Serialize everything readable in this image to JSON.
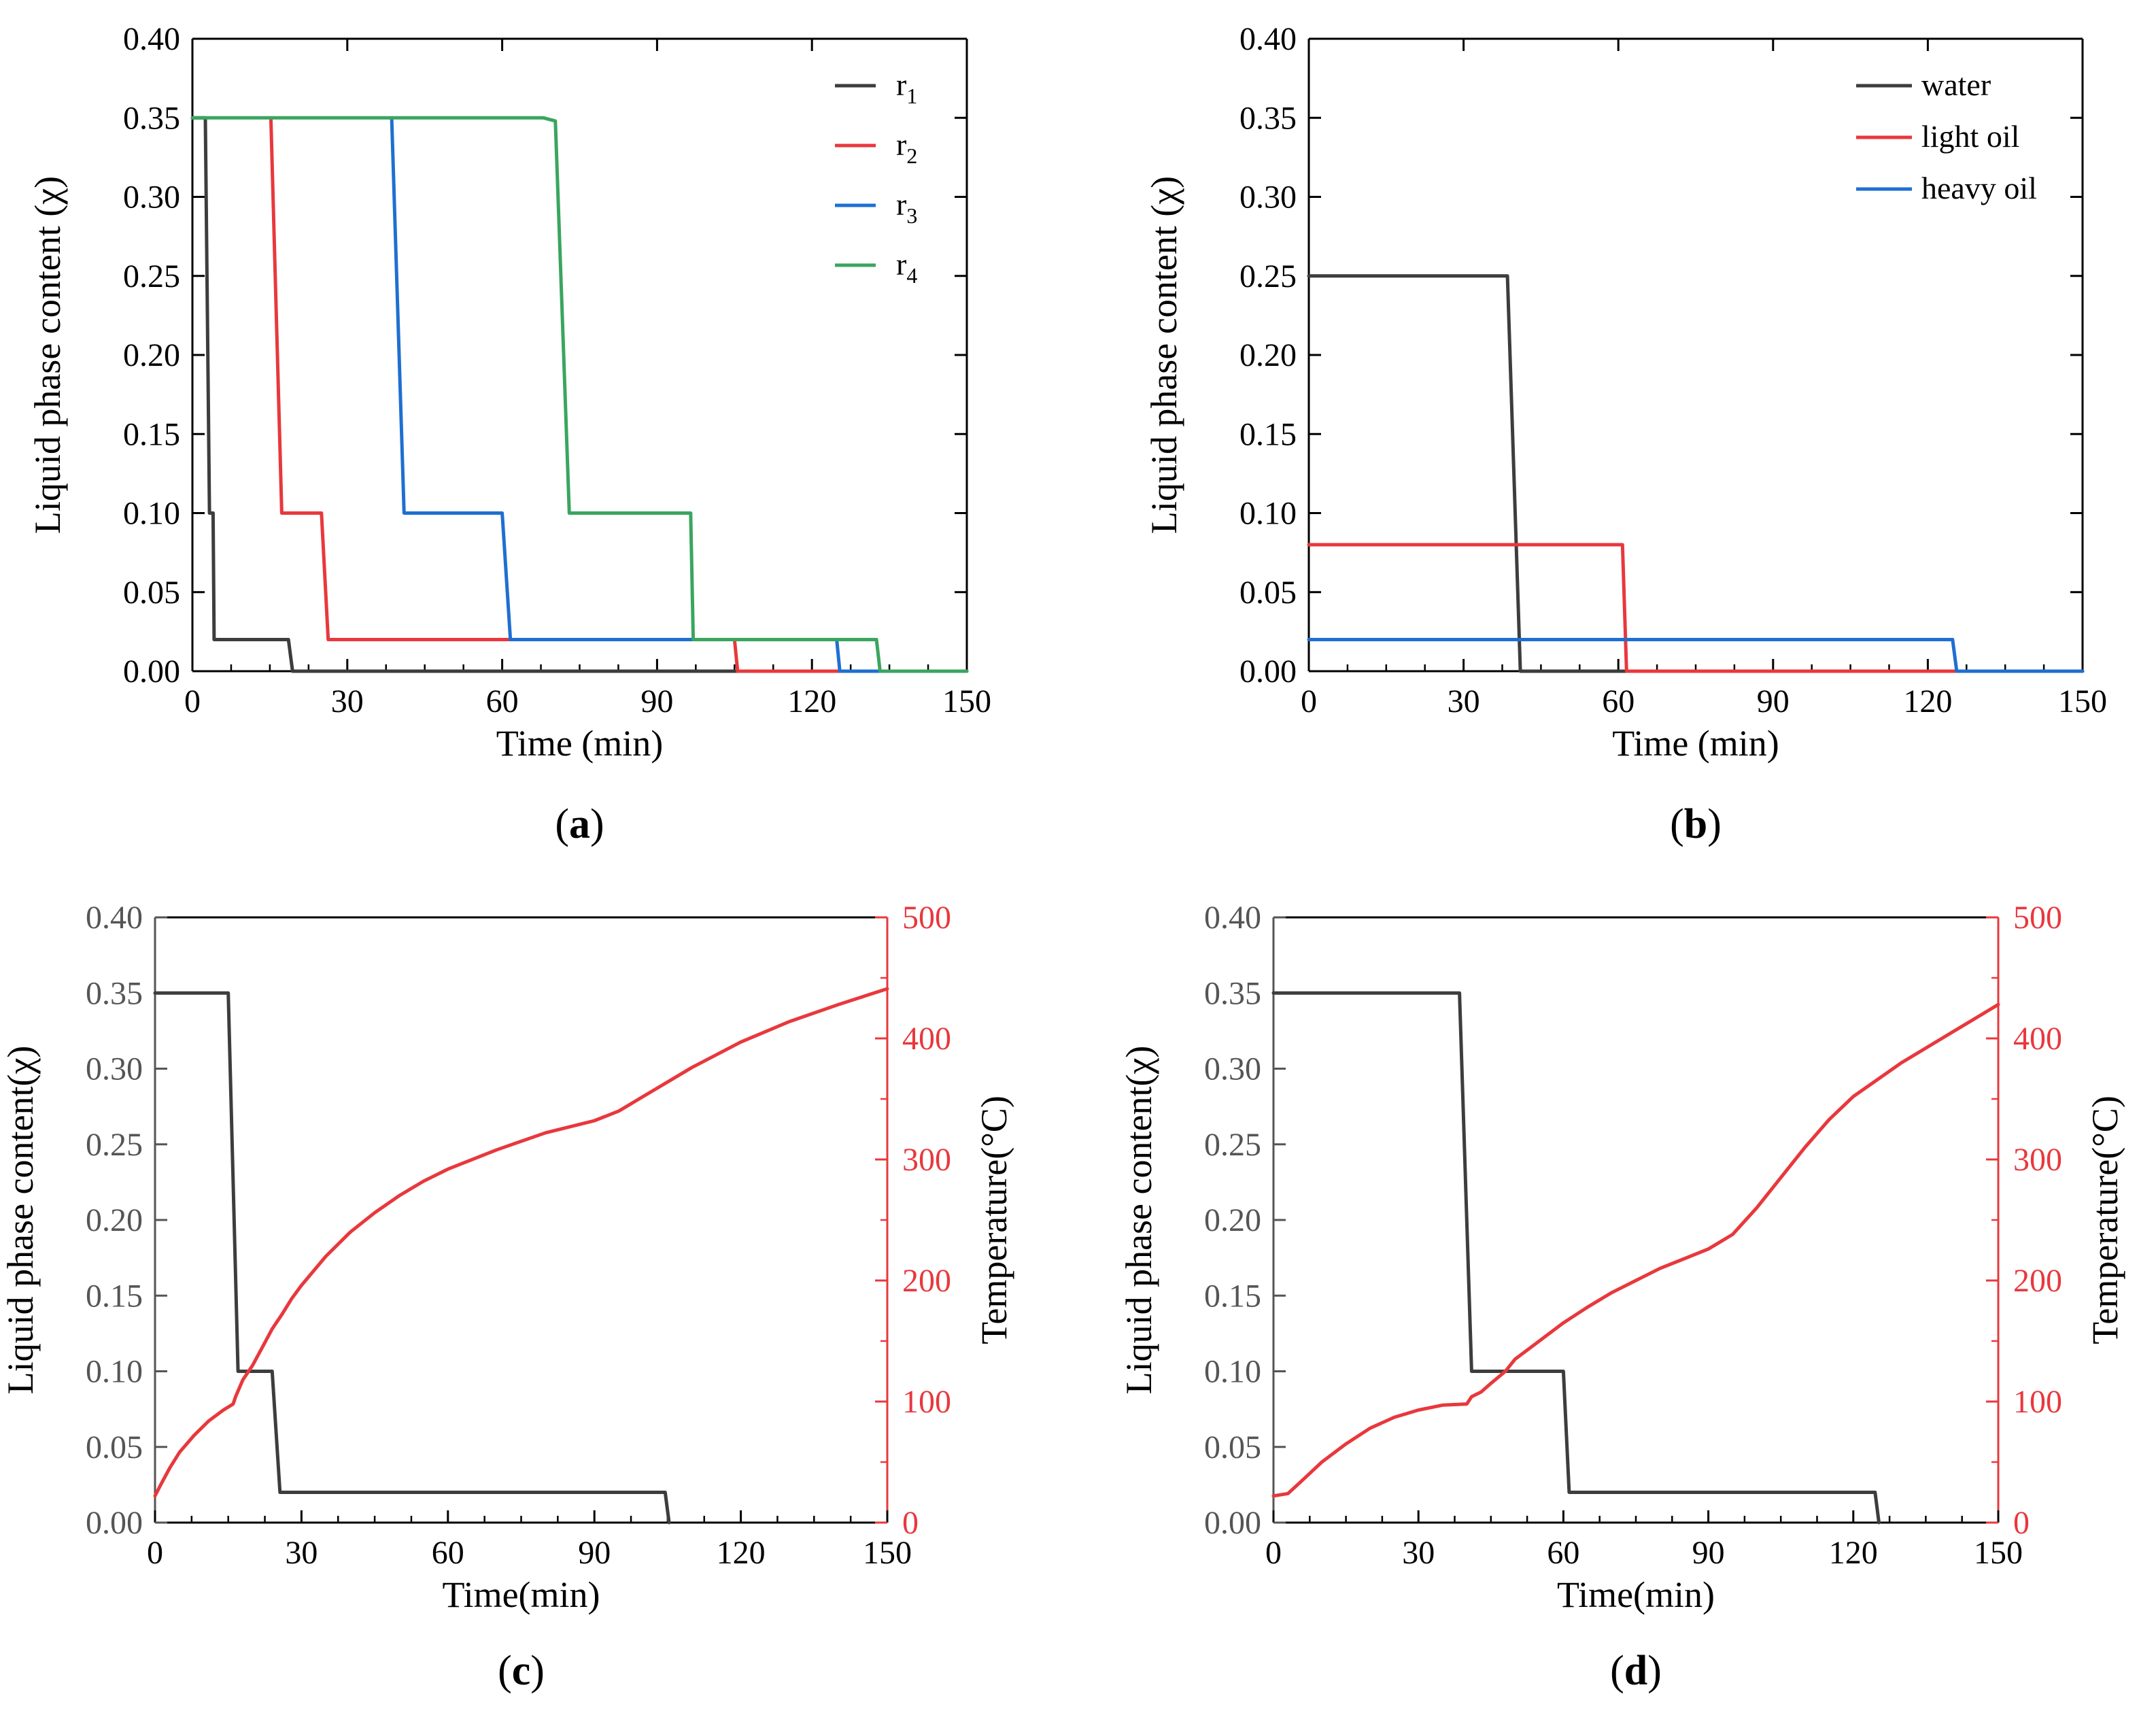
{
  "colors": {
    "black": "#000000",
    "dark": "#3d3d3d",
    "gray": "#555555",
    "red": "#e8383d",
    "blue": "#1f6fd1",
    "green": "#3aa55f"
  },
  "chart_data": [
    {
      "type": "line",
      "caption_letter": "a",
      "title": "",
      "xlabel": "Time (min)",
      "ylabel": "Liquid phase content (χ)",
      "xlim": [
        0,
        150
      ],
      "ylim": [
        0,
        0.4
      ],
      "x_ticks": [
        0,
        30,
        60,
        90,
        120,
        150
      ],
      "x_tick_labels": [
        "0",
        "30",
        "60",
        "90",
        "120",
        "150"
      ],
      "y_ticks": [
        0,
        0.05,
        0.1,
        0.15,
        0.2,
        0.25,
        0.3,
        0.35,
        0.4
      ],
      "y_tick_labels": [
        "0.00",
        "0.05",
        "0.10",
        "0.15",
        "0.20",
        "0.25",
        "0.30",
        "0.35",
        "0.40"
      ],
      "legend_position": "top-right",
      "series": [
        {
          "name": "r",
          "sub": "1",
          "color": "#3d3d3d",
          "x": [
            0,
            2.5,
            3.3,
            3.6,
            4.0,
            4.2,
            18.6,
            19.4,
            150
          ],
          "y": [
            0.35,
            0.35,
            0.1,
            0.1,
            0.1,
            0.02,
            0.02,
            0.0,
            0.0
          ]
        },
        {
          "name": "r",
          "sub": "2",
          "color": "#e8383d",
          "x": [
            15.2,
            17.3,
            25.0,
            26.3,
            105.0,
            105.6,
            150
          ],
          "y": [
            0.35,
            0.1,
            0.1,
            0.02,
            0.02,
            0.0,
            0.0
          ]
        },
        {
          "name": "r",
          "sub": "3",
          "color": "#1f6fd1",
          "x": [
            38.6,
            41.0,
            60.0,
            61.6,
            124.8,
            125.4,
            150
          ],
          "y": [
            0.35,
            0.1,
            0.1,
            0.02,
            0.02,
            0.0,
            0.0
          ]
        },
        {
          "name": "r",
          "sub": "4",
          "color": "#3aa55f",
          "x": [
            0,
            68.0,
            70.3,
            73.0,
            96.5,
            97.0,
            132.5,
            133.2,
            150
          ],
          "y": [
            0.35,
            0.35,
            0.348,
            0.1,
            0.1,
            0.02,
            0.02,
            0.0,
            0.0
          ]
        }
      ]
    },
    {
      "type": "line",
      "caption_letter": "b",
      "title": "",
      "xlabel": "Time (min)",
      "ylabel": "Liquid phase content (χ)",
      "xlim": [
        0,
        150
      ],
      "ylim": [
        0,
        0.4
      ],
      "x_ticks": [
        0,
        30,
        60,
        90,
        120,
        150
      ],
      "x_tick_labels": [
        "0",
        "30",
        "60",
        "90",
        "120",
        "150"
      ],
      "y_ticks": [
        0,
        0.05,
        0.1,
        0.15,
        0.2,
        0.25,
        0.3,
        0.35,
        0.4
      ],
      "y_tick_labels": [
        "0.00",
        "0.05",
        "0.10",
        "0.15",
        "0.20",
        "0.25",
        "0.30",
        "0.35",
        "0.40"
      ],
      "legend_position": "top-right",
      "series": [
        {
          "name": "water",
          "color": "#3d3d3d",
          "x": [
            0,
            38.5,
            41.0,
            150
          ],
          "y": [
            0.25,
            0.25,
            0.0,
            0.0
          ]
        },
        {
          "name": "light oil",
          "color": "#e8383d",
          "x": [
            0,
            60.8,
            61.6,
            150
          ],
          "y": [
            0.08,
            0.08,
            0.0,
            0.0
          ]
        },
        {
          "name": "heavy oil",
          "color": "#1f6fd1",
          "x": [
            0,
            124.8,
            125.6,
            150
          ],
          "y": [
            0.02,
            0.02,
            0.0,
            0.0
          ]
        }
      ]
    },
    {
      "type": "line",
      "caption_letter": "c",
      "title": "",
      "xlabel": "Time(min)",
      "ylabel": "Liquid phase content(χ)",
      "y2label": "Temperature(°C)",
      "xlim": [
        0,
        150
      ],
      "ylim": [
        0,
        0.4
      ],
      "y2lim": [
        0,
        500
      ],
      "x_ticks": [
        0,
        30,
        60,
        90,
        120,
        150
      ],
      "x_tick_labels": [
        "0",
        "30",
        "60",
        "90",
        "120",
        "150"
      ],
      "y_ticks": [
        0,
        0.05,
        0.1,
        0.15,
        0.2,
        0.25,
        0.3,
        0.35,
        0.4
      ],
      "y_tick_labels": [
        "0.00",
        "0.05",
        "0.10",
        "0.15",
        "0.20",
        "0.25",
        "0.30",
        "0.35",
        "0.40"
      ],
      "y2_ticks": [
        0,
        100,
        200,
        300,
        400,
        500
      ],
      "y2_tick_labels": [
        "0",
        "100",
        "200",
        "300",
        "400",
        "500"
      ],
      "series": [
        {
          "name": "Liquid phase content",
          "axis": "left",
          "color": "#3d3d3d",
          "x": [
            0,
            15.0,
            17.0,
            24.0,
            25.6,
            104.5,
            105.3
          ],
          "y": [
            0.35,
            0.35,
            0.1,
            0.1,
            0.02,
            0.02,
            0.0
          ]
        },
        {
          "name": "Temperature",
          "axis": "right",
          "color": "#e8383d",
          "x": [
            0,
            1,
            3,
            5,
            8,
            11,
            14,
            16,
            16.5,
            18,
            20,
            22,
            24,
            26,
            28,
            30,
            35,
            40,
            45,
            50,
            55,
            60,
            70,
            80,
            90,
            95,
            100,
            110,
            120,
            130,
            140,
            150
          ],
          "y": [
            22,
            30,
            45,
            58,
            72,
            84,
            93,
            98,
            104,
            118,
            130,
            145,
            160,
            172,
            185,
            196,
            220,
            240,
            256,
            270,
            282,
            292,
            308,
            322,
            332,
            340,
            352,
            376,
            397,
            414,
            428,
            441
          ]
        }
      ]
    },
    {
      "type": "line",
      "caption_letter": "d",
      "title": "",
      "xlabel": "Time(min)",
      "ylabel": "Liquid phase content(χ)",
      "y2label": "Temperature(°C)",
      "xlim": [
        0,
        150
      ],
      "ylim": [
        0,
        0.4
      ],
      "y2lim": [
        0,
        500
      ],
      "x_ticks": [
        0,
        30,
        60,
        90,
        120,
        150
      ],
      "x_tick_labels": [
        "0",
        "30",
        "60",
        "90",
        "120",
        "150"
      ],
      "y_ticks": [
        0,
        0.05,
        0.1,
        0.15,
        0.2,
        0.25,
        0.3,
        0.35,
        0.4
      ],
      "y_tick_labels": [
        "0.00",
        "0.05",
        "0.10",
        "0.15",
        "0.20",
        "0.25",
        "0.30",
        "0.35",
        "0.40"
      ],
      "y2_ticks": [
        0,
        100,
        200,
        300,
        400,
        500
      ],
      "y2_tick_labels": [
        "0",
        "100",
        "200",
        "300",
        "400",
        "500"
      ],
      "series": [
        {
          "name": "Liquid phase content",
          "axis": "left",
          "color": "#3d3d3d",
          "x": [
            0,
            38.5,
            41.0,
            60.0,
            61.2,
            124.5,
            125.3
          ],
          "y": [
            0.35,
            0.35,
            0.1,
            0.1,
            0.02,
            0.02,
            0.0
          ]
        },
        {
          "name": "Temperature",
          "axis": "right",
          "color": "#e8383d",
          "x": [
            0,
            3,
            6,
            10,
            15,
            20,
            25,
            30,
            35,
            40,
            41,
            43,
            45,
            48,
            50,
            55,
            60,
            65,
            70,
            75,
            80,
            85,
            90,
            95,
            100,
            105,
            110,
            115,
            120,
            130,
            140,
            150
          ],
          "y": [
            22,
            24,
            35,
            50,
            65,
            78,
            87,
            93,
            97,
            98,
            104,
            108,
            115,
            125,
            135,
            150,
            165,
            178,
            190,
            200,
            210,
            218,
            226,
            238,
            260,
            285,
            310,
            333,
            352,
            380,
            404,
            428
          ]
        }
      ]
    }
  ]
}
